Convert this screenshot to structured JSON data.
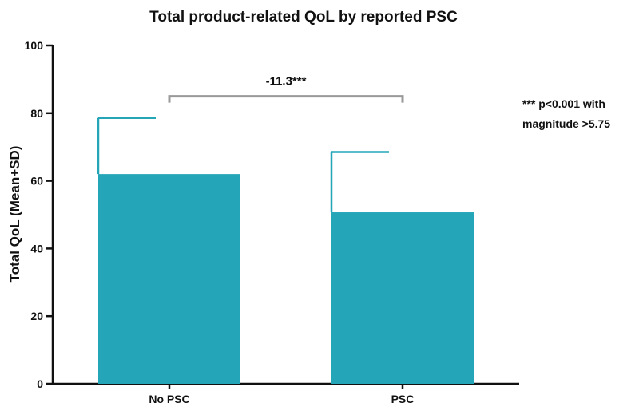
{
  "chart_data": {
    "type": "bar",
    "title": "Total product-related QoL by reported PSC",
    "ylabel": "Total QoL (Mean+SD)",
    "xlabel": "",
    "categories": [
      "No PSC",
      "PSC"
    ],
    "values": [
      62,
      50.7
    ],
    "error_upper": [
      78.6,
      68.5
    ],
    "ylim": [
      0,
      100
    ],
    "yticks": [
      "0",
      "20",
      "40",
      "60",
      "80",
      "100"
    ],
    "grid": false,
    "bar_color": "#25a5b8",
    "significance": {
      "label": "-11.3***",
      "between": [
        "No PSC",
        "PSC"
      ],
      "y": 85,
      "bracket_color": "#999999"
    },
    "note": {
      "line1": "*** p<0.001 with",
      "line2": "magnitude >5.75"
    }
  }
}
